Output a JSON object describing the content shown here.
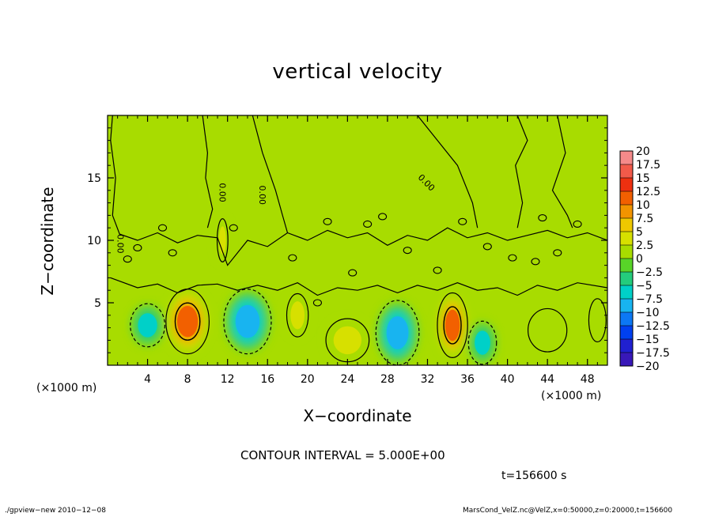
{
  "chart_data": {
    "type": "heatmap",
    "title": "vertical velocity",
    "xlabel": "X−coordinate",
    "ylabel": "Z−coordinate",
    "x_unit_left": "(×1000 m)",
    "x_unit_right": "(×1000 m)",
    "xlim": [
      0,
      50
    ],
    "ylim": [
      0,
      20
    ],
    "x_ticks": [
      4,
      8,
      12,
      16,
      20,
      24,
      28,
      32,
      36,
      40,
      44,
      48
    ],
    "x_tick_labels": [
      "4",
      "8",
      "12",
      "16",
      "20",
      "24",
      "28",
      "32",
      "36",
      "40",
      "44",
      "48"
    ],
    "y_ticks": [
      5,
      10,
      15
    ],
    "y_tick_labels": [
      "5",
      "10",
      "15"
    ],
    "colorbar": {
      "levels": [
        20,
        17.5,
        15,
        12.5,
        10,
        7.5,
        5,
        2.5,
        0,
        -2.5,
        -5,
        -7.5,
        -10,
        -12.5,
        -15,
        -17.5,
        -20
      ],
      "labels": [
        "20",
        "17.5",
        "15",
        "12.5",
        "10",
        "7.5",
        "5",
        "2.5",
        "0",
        "−2.5",
        "−5",
        "−7.5",
        "−10",
        "−12.5",
        "−15",
        "−17.5",
        "−20"
      ],
      "colors": [
        "#f58a8a",
        "#f25a4a",
        "#ee3010",
        "#f26000",
        "#f29400",
        "#eec800",
        "#d7e000",
        "#a8dc00",
        "#58d428",
        "#24cc7c",
        "#00d0c8",
        "#18b4f0",
        "#0c78f4",
        "#0040f0",
        "#2020d0",
        "#3818b8",
        "#6018b0"
      ]
    },
    "cells": [
      {
        "x": 4,
        "z": 3.2,
        "w": 1.6,
        "value": -8
      },
      {
        "x": 8,
        "z": 3.5,
        "w": 2.0,
        "value": 13
      },
      {
        "x": 14,
        "z": 3.5,
        "w": 2.2,
        "value": -9
      },
      {
        "x": 19,
        "z": 4.0,
        "w": 1.0,
        "value": 5
      },
      {
        "x": 24,
        "z": 2.0,
        "w": 2.0,
        "value": 6
      },
      {
        "x": 29,
        "z": 2.6,
        "w": 2.0,
        "value": -9
      },
      {
        "x": 34.5,
        "z": 3.2,
        "w": 1.4,
        "value": 13
      },
      {
        "x": 37.5,
        "z": 1.8,
        "w": 1.3,
        "value": -7
      },
      {
        "x": 44,
        "z": 2.8,
        "w": 1.8,
        "value": 3
      },
      {
        "x": 49,
        "z": 3.6,
        "w": 0.8,
        "value": 3
      },
      {
        "x": 11.5,
        "z": 10,
        "w": 0.5,
        "value": 4
      }
    ],
    "contour_interval": "CONTOUR INTERVAL = 5.000E+00",
    "zero_labels": [
      "0.00",
      "0.00",
      "0.00",
      "0.00"
    ],
    "time_label": "t=156600 s",
    "grid": false,
    "legend": "right"
  },
  "footer": {
    "left": "./gpview−new  2010−12−08",
    "right": "MarsCond_VelZ.nc@VelZ,x=0:50000,z=0:20000,t=156600"
  }
}
